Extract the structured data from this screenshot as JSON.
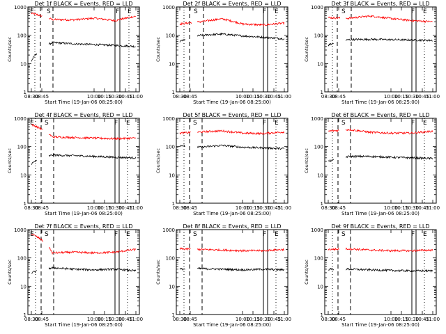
{
  "chart_data": [
    {
      "type": "line",
      "title": "Det 1f BLACK = Events, RED = LLD",
      "events": {
        "E1": "08:30",
        "S": "08:55",
        "F": "10:34",
        "E2": "10:50"
      },
      "dash": [
        "08:43",
        "09:01"
      ],
      "dot": [
        "08:35",
        "10:50"
      ],
      "solid": [
        "10:30",
        "10:37"
      ],
      "series": [
        {
          "color": "#ff0000",
          "base": [
            600,
            360,
            350,
            400,
            330,
            470
          ],
          "gapStart": "08:46",
          "gapEnd": "08:55",
          "spike": "08:57"
        },
        {
          "color": "#000000",
          "base": [
            12,
            55,
            50,
            47,
            44,
            40
          ],
          "gapStart": "08:38",
          "gapEnd": "08:55"
        }
      ]
    },
    {
      "type": "line",
      "title": "Det 2f BLACK = Events, RED = LLD",
      "events": {
        "E1": "",
        "S": "08:53",
        "F": "10:32",
        "E2": "10:48"
      },
      "dash": [
        "08:44",
        "09:04"
      ],
      "dot": [
        "08:36",
        "10:48"
      ],
      "solid": [
        "10:30",
        "10:36"
      ],
      "series": [
        {
          "color": "#ff0000",
          "base": [
            250,
            300,
            380,
            250,
            230,
            270
          ],
          "gapStart": "08:47",
          "gapEnd": "08:55"
        },
        {
          "color": "#000000",
          "base": [
            60,
            100,
            110,
            95,
            85,
            75
          ],
          "gapStart": "08:38",
          "gapEnd": "08:55"
        }
      ]
    },
    {
      "type": "line",
      "title": "Det 3f BLACK = Events, RED = LLD",
      "events": {
        "E1": "",
        "S": "08:52",
        "F": "10:32",
        "E2": "10:48"
      },
      "dash": [
        "08:43",
        "09:03"
      ],
      "dot": [
        "08:36",
        "10:48"
      ],
      "solid": [
        "10:30",
        "10:36"
      ],
      "series": [
        {
          "color": "#ff0000",
          "base": [
            420,
            400,
            480,
            390,
            330,
            300
          ],
          "gapStart": "08:47",
          "gapEnd": "08:55"
        },
        {
          "color": "#000000",
          "base": [
            45,
            70,
            72,
            70,
            68,
            66
          ],
          "gapStart": "08:38",
          "gapEnd": "08:55"
        }
      ]
    },
    {
      "type": "line",
      "title": "Det 4f BLACK = Events, RED = LLD",
      "events": {
        "E1": "08:30",
        "S": "08:52",
        "F": "10:32",
        "E2": "10:48"
      },
      "dash": [
        "08:44",
        "09:02"
      ],
      "dot": [
        "08:36",
        "10:48"
      ],
      "solid": [
        "10:30",
        "10:36"
      ],
      "series": [
        {
          "color": "#ff0000",
          "base": [
            600,
            220,
            210,
            200,
            190,
            200
          ],
          "gapStart": "08:47",
          "gapEnd": "08:55"
        },
        {
          "color": "#000000",
          "base": [
            25,
            50,
            48,
            45,
            42,
            40
          ],
          "gapStart": "08:38",
          "gapEnd": "08:55"
        }
      ]
    },
    {
      "type": "line",
      "title": "Det 5f BLACK = Events, RED = LLD",
      "events": {
        "E1": "",
        "S": "08:52",
        "F": "10:32",
        "E2": "10:48"
      },
      "dash": [
        "08:44",
        "09:02"
      ],
      "dot": [
        "08:36",
        "10:48"
      ],
      "solid": [
        "10:30",
        "10:36"
      ],
      "series": [
        {
          "color": "#ff0000",
          "base": [
            300,
            330,
            360,
            300,
            290,
            330
          ],
          "gapStart": "08:46",
          "gapEnd": "08:55"
        },
        {
          "color": "#000000",
          "base": [
            110,
            95,
            110,
            95,
            90,
            85
          ],
          "gapStart": "08:38",
          "gapEnd": "08:55"
        }
      ]
    },
    {
      "type": "line",
      "title": "Det 6f BLACK = Events, RED = LLD",
      "events": {
        "E1": "",
        "S": "08:52",
        "F": "10:32",
        "E2": "10:48"
      },
      "dash": [
        "08:44",
        "09:02"
      ],
      "dot": [
        "08:36",
        "10:48"
      ],
      "solid": [
        "10:30",
        "10:36"
      ],
      "series": [
        {
          "color": "#ff0000",
          "base": [
            350,
            400,
            320,
            300,
            300,
            350
          ],
          "gapStart": "08:46",
          "gapEnd": "08:55"
        },
        {
          "color": "#000000",
          "base": [
            30,
            45,
            45,
            42,
            40,
            38
          ],
          "gapStart": "08:38",
          "gapEnd": "08:55"
        }
      ]
    },
    {
      "type": "line",
      "title": "Det 7f BLACK = Events, RED = LLD",
      "events": {
        "E1": "08:30",
        "S": "08:52",
        "F": "10:32",
        "E2": "10:48"
      },
      "dash": [
        "08:44",
        "09:02"
      ],
      "dot": [
        "08:36",
        "10:48"
      ],
      "solid": [
        "10:30",
        "10:36"
      ],
      "series": [
        {
          "color": "#ff0000",
          "base": [
            700,
            150,
            160,
            150,
            160,
            200
          ],
          "gapStart": "08:47",
          "gapEnd": "08:55"
        },
        {
          "color": "#000000",
          "base": [
            30,
            45,
            40,
            38,
            40,
            35
          ],
          "gapStart": "08:38",
          "gapEnd": "08:55"
        }
      ]
    },
    {
      "type": "line",
      "title": "Det 8f BLACK = Events, RED = LLD",
      "events": {
        "E1": "",
        "S": "08:52",
        "F": "10:32",
        "E2": "10:48"
      },
      "dash": [
        "08:44",
        "09:02"
      ],
      "dot": [
        "08:36",
        "10:48"
      ],
      "solid": [
        "10:30",
        "10:36"
      ],
      "series": [
        {
          "color": "#ff0000",
          "base": [
            210,
            200,
            190,
            180,
            180,
            200
          ],
          "gapStart": "08:46",
          "gapEnd": "08:55"
        },
        {
          "color": "#000000",
          "base": [
            40,
            42,
            40,
            38,
            40,
            38
          ],
          "gapStart": "08:38",
          "gapEnd": "08:55"
        }
      ]
    },
    {
      "type": "line",
      "title": "Det 9f BLACK = Events, RED = LLD",
      "events": {
        "E1": "",
        "S": "08:52",
        "F": "10:32",
        "E2": "10:48"
      },
      "dash": [
        "08:44",
        "09:02"
      ],
      "dot": [
        "08:36",
        "10:48"
      ],
      "solid": [
        "10:30",
        "10:36"
      ],
      "series": [
        {
          "color": "#ff0000",
          "base": [
            200,
            210,
            190,
            180,
            180,
            190
          ],
          "gapStart": "08:46",
          "gapEnd": "08:55"
        },
        {
          "color": "#000000",
          "base": [
            40,
            40,
            38,
            36,
            35,
            35
          ],
          "gapStart": "08:38",
          "gapEnd": "08:55"
        }
      ]
    }
  ],
  "axes": {
    "xlabel": "Start Time (19-Jan-06 08:25:00)",
    "ylabel": "Counts/sec",
    "xticks": [
      "08:30",
      "08:45",
      "10:00",
      "10:15",
      "10:30",
      "10:45",
      "11:00"
    ],
    "yticks": [
      "1",
      "10",
      "100",
      "1000"
    ],
    "ylim": [
      1,
      1000
    ],
    "xlim": [
      "08:25",
      "11:05"
    ],
    "scale": "log"
  }
}
